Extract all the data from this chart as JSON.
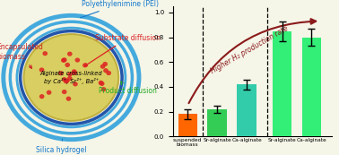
{
  "bar_categories": [
    "suspended\nbiomass",
    "Sr-alginate",
    "Ca-alginate",
    "Sr-alginate",
    "Ca-alginate"
  ],
  "bar_values": [
    0.18,
    0.22,
    0.42,
    0.85,
    0.8
  ],
  "bar_errors": [
    0.04,
    0.03,
    0.04,
    0.08,
    0.07
  ],
  "bar_colors": [
    "#ff6600",
    "#33cc55",
    "#33ccaa",
    "#33ee77",
    "#33ee77"
  ],
  "arrow_color": "#8b1a1a",
  "arrow_label": "Higher H₂ production rate",
  "background_color": "#f5f5e8",
  "ylim": [
    0,
    1.05
  ],
  "figsize": [
    3.78,
    1.73
  ],
  "dpi": 100
}
